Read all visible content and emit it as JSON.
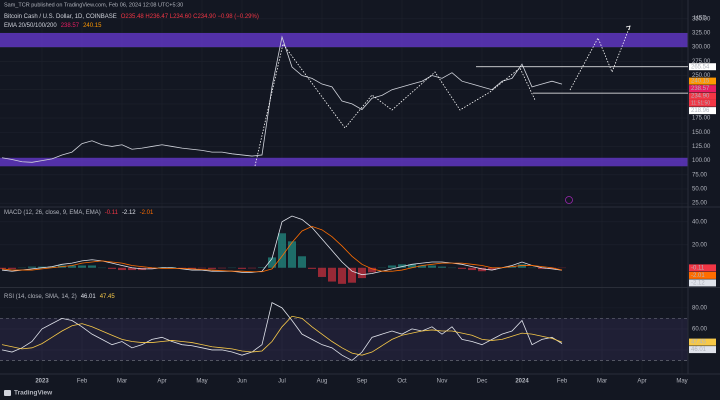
{
  "header": {
    "publisher": "Sam_TCR published on TradingView.com, Feb 06, 2024 12:08 UTC+5:30",
    "logo": "TradingView"
  },
  "chart_data": [
    {
      "type": "line",
      "title": "Bitcoin Cash / U.S. Dollar, 1D, COINBASE",
      "ohlc": "O235.48 H236.47 L234.60 C234.90 −0.98 (−0.29%)",
      "indicator": "EMA 20/50/100/200",
      "indicator_values": [
        238.57,
        240.15
      ],
      "unit": "USD",
      "categories": [
        null,
        null,
        null,
        null,
        "2023",
        null,
        null,
        null,
        "Feb",
        null,
        null,
        null,
        "Mar",
        null,
        null,
        null,
        "Apr",
        null,
        null,
        null,
        "May",
        null,
        null,
        null,
        "Jun",
        null,
        null,
        null,
        "Jul",
        null,
        null,
        null,
        "Aug",
        null,
        null,
        null,
        "Sep",
        null,
        null,
        null,
        "Oct",
        null,
        null,
        null,
        "Nov",
        null,
        null,
        null,
        "Dec",
        null,
        null,
        null,
        "2024",
        null,
        null,
        null,
        "Feb",
        null,
        null,
        null,
        "Mar",
        null,
        null,
        null,
        "Apr",
        null,
        null,
        null,
        "May"
      ],
      "values": [
        105,
        102,
        98,
        97,
        100,
        103,
        110,
        115,
        130,
        135,
        128,
        125,
        128,
        120,
        122,
        125,
        128,
        125,
        122,
        120,
        118,
        115,
        115,
        112,
        110,
        108,
        110,
        230,
        318,
        265,
        250,
        245,
        235,
        230,
        205,
        200,
        190,
        210,
        215,
        225,
        230,
        235,
        240,
        250,
        245,
        255,
        240,
        235,
        230,
        225,
        240,
        245,
        270,
        230,
        235,
        240,
        234.9,
        null,
        null,
        null,
        null,
        null,
        null,
        null,
        null,
        null,
        null,
        null,
        null
      ],
      "color": "#d1d4dc",
      "ylim": [
        20,
        362
      ],
      "yticks": [
        {
          "value": 350,
          "label": "350.00"
        },
        {
          "value": 325,
          "label": "325.00"
        },
        {
          "value": 300,
          "label": "300.00"
        },
        {
          "value": 275,
          "label": "275.00"
        },
        {
          "value": 250,
          "label": "250.00"
        },
        {
          "value": 225,
          "label": "225.00"
        },
        {
          "value": 200,
          "label": "200.00"
        },
        {
          "value": 175,
          "label": "175.00"
        },
        {
          "value": 150,
          "label": "150.00"
        },
        {
          "value": 125,
          "label": "125.00"
        },
        {
          "value": 100,
          "label": "100.00"
        },
        {
          "value": 75,
          "label": "75.00"
        },
        {
          "value": 50,
          "label": "50.00"
        },
        {
          "value": 25,
          "label": "25.00"
        }
      ],
      "grid": true,
      "zones": [
        [
          300,
          325
        ],
        [
          90,
          105
        ]
      ],
      "zone_color": "#6a3bd6",
      "markers": [
        {
          "value": 265.54,
          "label": "265.54",
          "color": "#ffffff",
          "line": true
        },
        {
          "value": 240.15,
          "label": "240.15",
          "color": "#ff9800"
        },
        {
          "value": 238.57,
          "label": "238.57",
          "color": "#e91e63"
        },
        {
          "value": 234.9,
          "label": "234.90",
          "color": "#f23645",
          "countdown": "11:51:50"
        },
        {
          "value": 218.96,
          "label": "218.96",
          "color": "#ffffff",
          "line": true
        }
      ]
    },
    {
      "type": "macd",
      "title": "MACD (12, 26, close, 9, EMA, EMA)",
      "ylim": [
        -15,
        52
      ],
      "yticks": [
        {
          "value": 40,
          "label": "40.00"
        },
        {
          "value": 20,
          "label": "20.00"
        }
      ],
      "histogram": {
        "values": [
          -1,
          -1,
          0,
          1,
          1,
          1,
          2,
          2,
          2,
          2,
          0,
          -1,
          -2,
          -2,
          -2,
          -1,
          0.5,
          0.5,
          -0.5,
          -1,
          -0.5,
          -1,
          -0.5,
          0,
          -1,
          -0.5,
          0.5,
          9,
          30,
          23,
          10,
          -1,
          -8,
          -12,
          -14,
          -13,
          -9,
          -4,
          0,
          2,
          3,
          3,
          2,
          2,
          1,
          0,
          -1,
          -2,
          -3,
          -2,
          0,
          1,
          3,
          0,
          -1,
          -1,
          -0.11,
          null,
          null,
          null,
          null,
          null,
          null,
          null,
          null,
          null,
          null,
          null,
          null
        ],
        "colors": [
          "#26a69a",
          "#f23645"
        ]
      },
      "series": [
        {
          "color": "#e0e3eb",
          "values": [
            -2,
            -3,
            -2,
            -1,
            0,
            1,
            3,
            4,
            6,
            7,
            6,
            4,
            2,
            0,
            -1,
            -1,
            0,
            0,
            -1,
            -2,
            -2,
            -3,
            -3,
            -3,
            -4,
            -4,
            -3,
            8,
            40,
            45,
            42,
            35,
            25,
            15,
            5,
            -3,
            -6,
            -5,
            -3,
            -1,
            1,
            3,
            4,
            5,
            5,
            4,
            3,
            1,
            -1,
            -2,
            0,
            2,
            5,
            2,
            0,
            -1,
            -2.12,
            null,
            null,
            null,
            null,
            null,
            null,
            null,
            null,
            null,
            null,
            null,
            null
          ]
        },
        {
          "color": "#ff6d00",
          "values": [
            -1,
            -2,
            -2,
            -2,
            -1,
            0,
            1,
            2,
            4,
            5,
            6,
            5,
            4,
            2,
            1,
            0,
            -0.5,
            -0.5,
            -0.5,
            -1,
            -1.5,
            -2,
            -2.5,
            -3,
            -3,
            -3.5,
            -3.5,
            -1,
            10,
            22,
            32,
            36,
            33,
            27,
            19,
            10,
            3,
            -1,
            -3,
            -3,
            -2,
            0,
            2,
            3,
            4,
            4,
            4,
            3,
            2,
            0,
            0,
            1,
            2,
            2,
            1,
            0,
            -2.01,
            null,
            null,
            null,
            null,
            null,
            null,
            null,
            null,
            null,
            null,
            null,
            null
          ]
        }
      ]
    },
    {
      "type": "rsi",
      "title": "RSI (14, close, SMA, 14, 2)",
      "ylim": [
        19,
        97
      ],
      "yticks": [
        {
          "value": 80,
          "label": "80.00"
        },
        {
          "value": 60,
          "label": "60.00"
        },
        {
          "value": 40,
          "label": "40.00"
        }
      ],
      "band": [
        30,
        70
      ],
      "band_color": "#7e57c2",
      "series": [
        {
          "color": "#e0e3eb",
          "values": [
            40,
            38,
            42,
            48,
            60,
            65,
            70,
            68,
            62,
            55,
            50,
            45,
            48,
            42,
            45,
            50,
            52,
            48,
            45,
            44,
            42,
            40,
            40,
            38,
            35,
            38,
            45,
            85,
            80,
            68,
            55,
            50,
            45,
            42,
            35,
            30,
            38,
            52,
            55,
            58,
            55,
            60,
            58,
            62,
            55,
            62,
            50,
            48,
            45,
            50,
            55,
            58,
            68,
            45,
            50,
            52,
            46.01,
            null,
            null,
            null,
            null,
            null,
            null,
            null,
            null,
            null,
            null,
            null,
            null
          ]
        },
        {
          "color": "#f7c948",
          "values": [
            45,
            43,
            41,
            42,
            46,
            52,
            58,
            63,
            65,
            62,
            58,
            54,
            50,
            48,
            47,
            47,
            48,
            49,
            48,
            47,
            45,
            43,
            42,
            41,
            39,
            38,
            39,
            48,
            62,
            72,
            70,
            62,
            55,
            48,
            42,
            37,
            35,
            38,
            44,
            50,
            54,
            56,
            58,
            59,
            58,
            58,
            56,
            54,
            50,
            49,
            50,
            53,
            56,
            55,
            53,
            51,
            47.45,
            null,
            null,
            null,
            null,
            null,
            null,
            null,
            null,
            null,
            null,
            null,
            null
          ]
        }
      ]
    }
  ]
}
